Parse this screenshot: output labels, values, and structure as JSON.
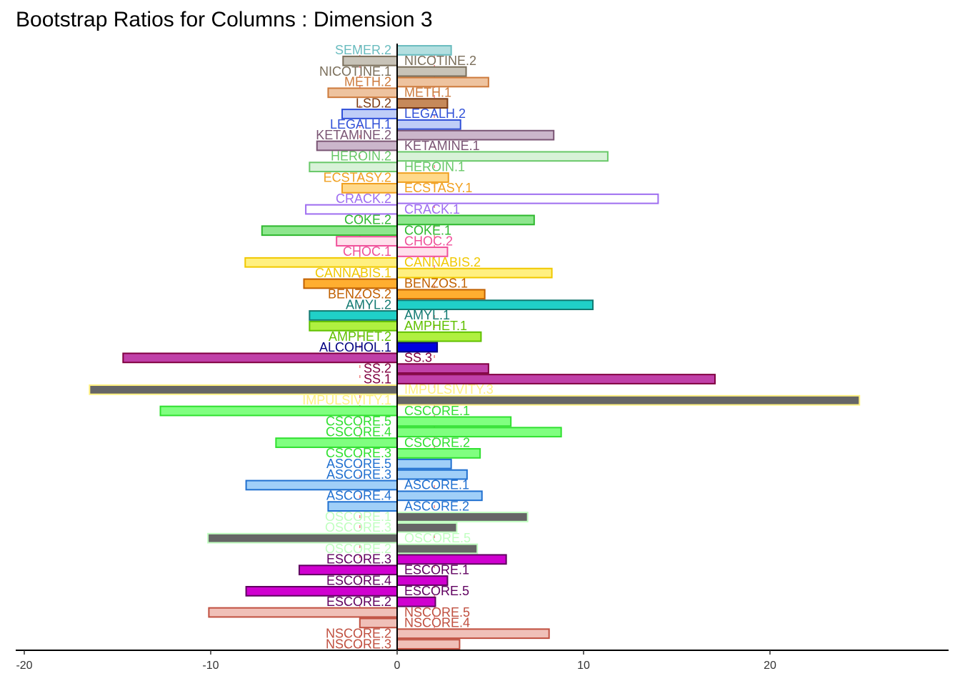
{
  "chart_data": {
    "type": "bar",
    "orientation": "horizontal",
    "title": "Bootstrap Ratios for Columns : Dimension 3",
    "categories": [
      "SEMER.2",
      "NICOTINE.2",
      "NICOTINE.1",
      "METH.2",
      "METH.1",
      "LSD.2",
      "LEGALH.2",
      "LEGALH.1",
      "KETAMINE.2",
      "KETAMINE.1",
      "HEROIN.2",
      "HEROIN.1",
      "ECSTASY.2",
      "ECSTASY.1",
      "CRACK.2",
      "CRACK.1",
      "COKE.2",
      "COKE.1",
      "CHOC.2",
      "CHOC.1",
      "CANNABIS.2",
      "CANNABIS.1",
      "BENZOS.1",
      "BENZOS.2",
      "AMYL.2",
      "AMYL.1",
      "AMPHET.1",
      "AMPHET.2",
      "ALCOHOL.1",
      "SS.3",
      "SS.2",
      "SS.1",
      "IMPULSIVITY.3",
      "IMPULSIVITY.1",
      "CSCORE.1",
      "CSCORE.5",
      "CSCORE.4",
      "CSCORE.2",
      "CSCORE.3",
      "ASCORE.5",
      "ASCORE.3",
      "ASCORE.1",
      "ASCORE.4",
      "ASCORE.2",
      "OSCORE.1",
      "OSCORE.3",
      "OSCORE.5",
      "OSCORE.2",
      "ESCORE.3",
      "ESCORE.1",
      "ESCORE.4",
      "ESCORE.5",
      "ESCORE.2",
      "NSCORE.5",
      "NSCORE.4",
      "NSCORE.2",
      "NSCORE.3"
    ],
    "values": [
      2.9,
      -2.9,
      3.7,
      4.9,
      -3.7,
      2.7,
      -2.95,
      3.4,
      8.4,
      -4.3,
      11.3,
      -4.7,
      2.75,
      -2.95,
      14.0,
      -4.9,
      7.35,
      -7.25,
      -3.25,
      2.7,
      -8.15,
      8.3,
      -5.0,
      4.7,
      10.5,
      -4.7,
      -4.7,
      4.5,
      2.15,
      -14.7,
      4.9,
      17.05,
      -16.5,
      24.8,
      -12.7,
      6.1,
      8.8,
      -6.5,
      4.45,
      2.9,
      3.75,
      -8.1,
      4.55,
      -3.7,
      7.0,
      3.2,
      -10.15,
      4.3,
      5.85,
      -5.25,
      2.7,
      -8.1,
      2.05,
      -10.1,
      -2.0,
      8.15,
      3.35
    ],
    "colors": [
      "#b3dfe0",
      "#c8c3b8",
      "#c8c3b8",
      "#eec39f",
      "#eec39f",
      "#c6895a",
      "#bfcdf8",
      "#bfcdf8",
      "#cbb6cb",
      "#cbb6cb",
      "#d8f2d8",
      "#d8f2d8",
      "#ffd98a",
      "#ffd98a",
      "#ffffff",
      "#ffffff",
      "#8ee68e",
      "#8ee68e",
      "#ffe0ec",
      "#ffe0ec",
      "#fff080",
      "#fff080",
      "#ffae30",
      "#ffae30",
      "#20d0c8",
      "#20d0c8",
      "#b0f040",
      "#b0f040",
      "#0000e0",
      "#c040a8",
      "#c040a8",
      "#c040a8",
      "#666666",
      "#666666",
      "#80ff80",
      "#80ff80",
      "#80ff80",
      "#80ff80",
      "#80ff80",
      "#a0cff8",
      "#a0cff8",
      "#a0cff8",
      "#a0cff8",
      "#a0cff8",
      "#666666",
      "#666666",
      "#666666",
      "#666666",
      "#d000d0",
      "#d000d0",
      "#d000d0",
      "#d000d0",
      "#d000d0",
      "#f0c0b8",
      "#f0c0b8",
      "#f0c0b8",
      "#f0c0b8"
    ],
    "label_colors": [
      "#6abcbf",
      "#7a6e5a",
      "#7a6e5a",
      "#cd7a3c",
      "#cd7a3c",
      "#7b3b14",
      "#3050d8",
      "#3050d8",
      "#7a5574",
      "#7a5574",
      "#68c868",
      "#68c868",
      "#f0a020",
      "#f0a020",
      "#9e6df0",
      "#9e6df0",
      "#2eb82e",
      "#2eb82e",
      "#f0509a",
      "#f0509a",
      "#f0c800",
      "#f0c800",
      "#c06000",
      "#c06000",
      "#137a72",
      "#137a72",
      "#60c000",
      "#60c000",
      "#000080",
      "#800040",
      "#800040",
      "#800040",
      "#fff080",
      "#fff080",
      "#30e030",
      "#30e030",
      "#30e030",
      "#30e030",
      "#30e030",
      "#2070d0",
      "#2070d0",
      "#2070d0",
      "#2070d0",
      "#2070d0",
      "#c0ffc0",
      "#c0ffc0",
      "#c0ffc0",
      "#c0ffc0",
      "#600060",
      "#600060",
      "#600060",
      "#600060",
      "#600060",
      "#c05040",
      "#c05040",
      "#c05040",
      "#c05040"
    ],
    "xlim": [
      -20.46,
      29.58
    ],
    "xticks": [
      -20,
      -10,
      0,
      10,
      20
    ],
    "threshold_lines": [
      -2,
      2
    ],
    "threshold_color": "#f08080"
  }
}
